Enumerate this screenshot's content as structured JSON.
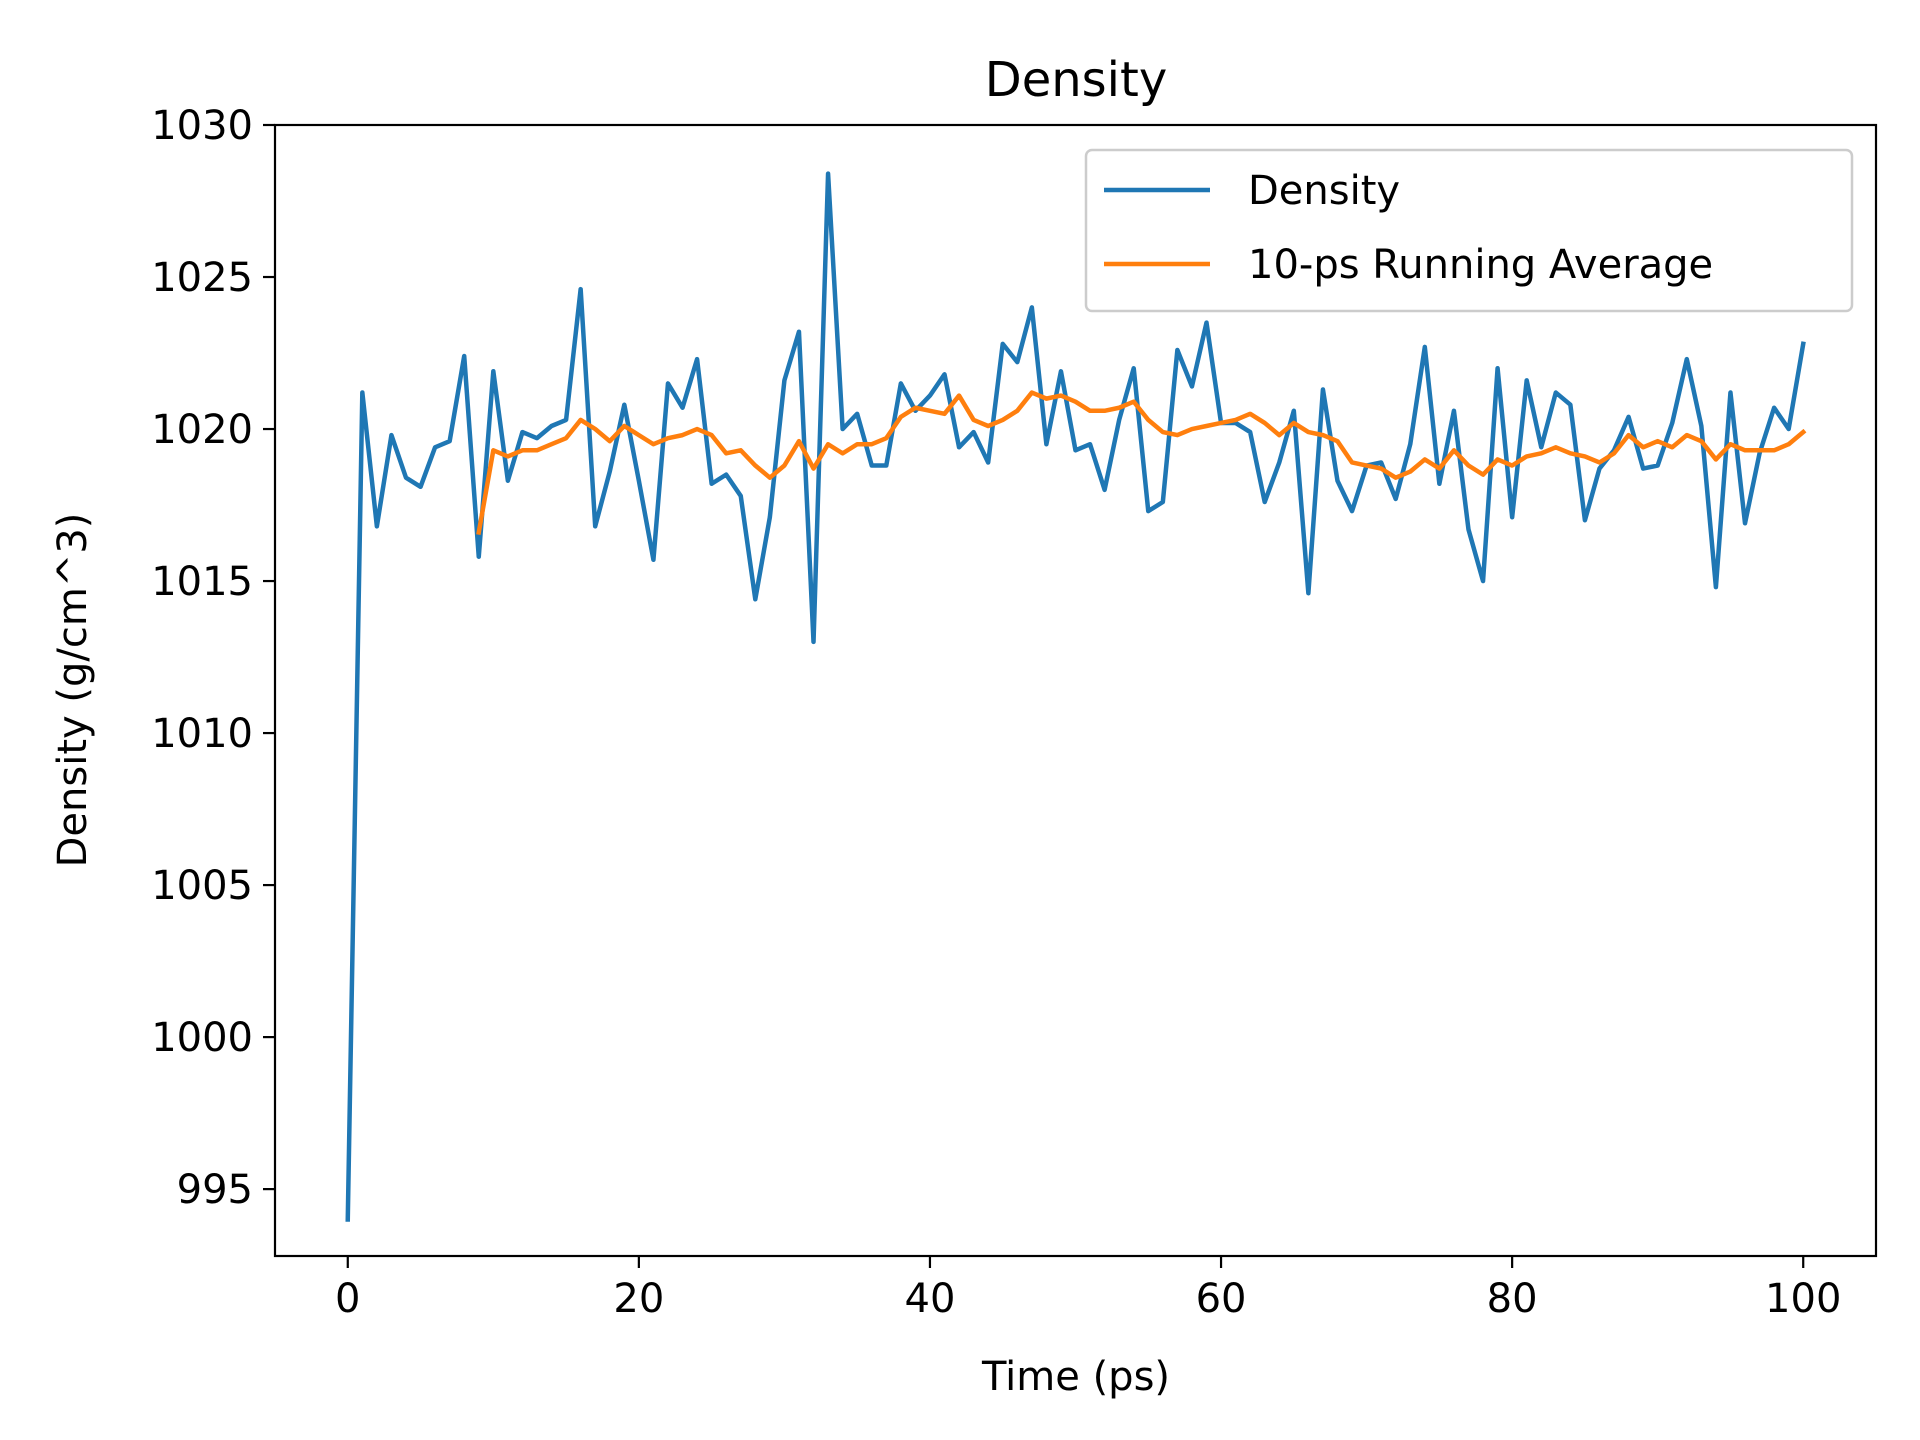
{
  "chart_data": {
    "type": "line",
    "title": "Density",
    "xlabel": "Time (ps)",
    "ylabel": "Density (g/cm^3)",
    "xlim": [
      -5,
      105
    ],
    "ylim": [
      992.8,
      1030
    ],
    "xticks": [
      0,
      20,
      40,
      60,
      80,
      100
    ],
    "yticks": [
      995,
      1000,
      1005,
      1010,
      1015,
      1020,
      1025,
      1030
    ],
    "grid": false,
    "legend_position": "top-right",
    "series": [
      {
        "name": "Density",
        "color": "#1f77b4",
        "x": [
          0,
          1,
          2,
          3,
          4,
          5,
          6,
          7,
          8,
          9,
          10,
          11,
          12,
          13,
          14,
          15,
          16,
          17,
          18,
          19,
          20,
          21,
          22,
          23,
          24,
          25,
          26,
          27,
          28,
          29,
          30,
          31,
          32,
          33,
          34,
          35,
          36,
          37,
          38,
          39,
          40,
          41,
          42,
          43,
          44,
          45,
          46,
          47,
          48,
          49,
          50,
          51,
          52,
          53,
          54,
          55,
          56,
          57,
          58,
          59,
          60,
          61,
          62,
          63,
          64,
          65,
          66,
          67,
          68,
          69,
          70,
          71,
          72,
          73,
          74,
          75,
          76,
          77,
          78,
          79,
          80,
          81,
          82,
          83,
          84,
          85,
          86,
          87,
          88,
          89,
          90,
          91,
          92,
          93,
          94,
          95,
          96,
          97,
          98,
          99,
          100
        ],
        "y": [
          994.0,
          1021.2,
          1016.8,
          1019.8,
          1018.4,
          1018.1,
          1019.4,
          1019.6,
          1022.4,
          1015.8,
          1021.9,
          1018.3,
          1019.9,
          1019.7,
          1020.1,
          1020.3,
          1024.6,
          1016.8,
          1018.6,
          1020.8,
          1018.3,
          1015.7,
          1021.5,
          1020.7,
          1022.3,
          1018.2,
          1018.5,
          1017.8,
          1014.4,
          1017.1,
          1021.6,
          1023.2,
          1013.0,
          1028.4,
          1020.0,
          1020.5,
          1018.8,
          1018.8,
          1021.5,
          1020.6,
          1021.1,
          1021.8,
          1019.4,
          1019.9,
          1018.9,
          1022.8,
          1022.2,
          1024.0,
          1019.5,
          1021.9,
          1019.3,
          1019.5,
          1018.0,
          1020.3,
          1022.0,
          1017.3,
          1017.6,
          1022.6,
          1021.4,
          1023.5,
          1020.2,
          1020.2,
          1019.9,
          1017.6,
          1018.9,
          1020.6,
          1014.6,
          1021.3,
          1018.3,
          1017.3,
          1018.8,
          1018.9,
          1017.7,
          1019.5,
          1022.7,
          1018.2,
          1020.6,
          1016.7,
          1015.0,
          1022.0,
          1017.1,
          1021.6,
          1019.4,
          1021.2,
          1020.8,
          1017.0,
          1018.7,
          1019.3,
          1020.4,
          1018.7,
          1018.8,
          1020.2,
          1022.3,
          1020.1,
          1014.8,
          1021.2,
          1016.9,
          1019.2,
          1020.7,
          1020.0,
          1022.8
        ]
      },
      {
        "name": "10-ps Running Average",
        "color": "#ff7f0e",
        "x": [
          9,
          10,
          11,
          12,
          13,
          14,
          15,
          16,
          17,
          18,
          19,
          20,
          21,
          22,
          23,
          24,
          25,
          26,
          27,
          28,
          29,
          30,
          31,
          32,
          33,
          34,
          35,
          36,
          37,
          38,
          39,
          40,
          41,
          42,
          43,
          44,
          45,
          46,
          47,
          48,
          49,
          50,
          51,
          52,
          53,
          54,
          55,
          56,
          57,
          58,
          59,
          60,
          61,
          62,
          63,
          64,
          65,
          66,
          67,
          68,
          69,
          70,
          71,
          72,
          73,
          74,
          75,
          76,
          77,
          78,
          79,
          80,
          81,
          82,
          83,
          84,
          85,
          86,
          87,
          88,
          89,
          90,
          91,
          92,
          93,
          94,
          95,
          96,
          97,
          98,
          99,
          100
        ],
        "y": [
          1016.6,
          1019.3,
          1019.1,
          1019.3,
          1019.3,
          1019.5,
          1019.7,
          1020.3,
          1020.0,
          1019.6,
          1020.1,
          1019.8,
          1019.5,
          1019.7,
          1019.8,
          1020.0,
          1019.8,
          1019.2,
          1019.3,
          1018.8,
          1018.4,
          1018.8,
          1019.6,
          1018.7,
          1019.5,
          1019.2,
          1019.5,
          1019.5,
          1019.7,
          1020.4,
          1020.7,
          1020.6,
          1020.5,
          1021.1,
          1020.3,
          1020.1,
          1020.3,
          1020.6,
          1021.2,
          1021.0,
          1021.1,
          1020.9,
          1020.6,
          1020.6,
          1020.7,
          1020.9,
          1020.3,
          1019.9,
          1019.8,
          1020.0,
          1020.1,
          1020.2,
          1020.3,
          1020.5,
          1020.2,
          1019.8,
          1020.2,
          1019.9,
          1019.8,
          1019.6,
          1018.9,
          1018.8,
          1018.7,
          1018.4,
          1018.6,
          1019.0,
          1018.7,
          1019.3,
          1018.8,
          1018.5,
          1019.0,
          1018.8,
          1019.1,
          1019.2,
          1019.4,
          1019.2,
          1019.1,
          1018.9,
          1019.2,
          1019.8,
          1019.4,
          1019.6,
          1019.4,
          1019.8,
          1019.6,
          1019.0,
          1019.5,
          1019.3,
          1019.3,
          1019.3,
          1019.5,
          1019.9
        ]
      }
    ]
  }
}
